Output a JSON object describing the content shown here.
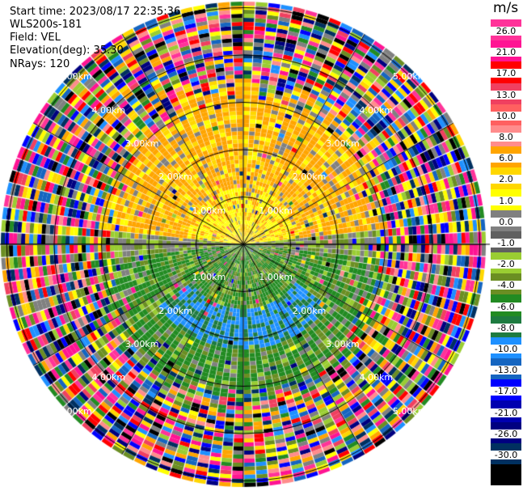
{
  "header": {
    "start_time": "Start time: 2023/08/17 22:35:36",
    "instrument": "WLS200s-181",
    "field": "Field: VEL",
    "elevation": "Elevation(deg): 35.30",
    "nrays": "NRays: 120"
  },
  "colorbar": {
    "unit": "m/s",
    "labels": [
      "26.0",
      "21.0",
      "17.0",
      "13.0",
      "10.0",
      "8.0",
      "6.0",
      "2.0",
      "1.0",
      "0.0",
      "-1.0",
      "-2.0",
      "-4.0",
      "-6.0",
      "-8.0",
      "-10.0",
      "-13.0",
      "-17.0",
      "-21.0",
      "-26.0",
      "-30.0"
    ],
    "colors": [
      "#ff3399",
      "#ff1493",
      "#ff0000",
      "#f04060",
      "#ff6060",
      "#ff8c8c",
      "#ffa500",
      "#ffd700",
      "#ffff00",
      "#808080",
      "#606060",
      "#9acd32",
      "#6b8e23",
      "#228b22",
      "#1e7b40",
      "#1e90ff",
      "#1565c0",
      "#0000ff",
      "#0000b0",
      "#000080",
      "#003060",
      "#000000"
    ]
  },
  "chart_data": {
    "type": "radar-ppi",
    "field": "VEL",
    "units": "m/s",
    "rays": 120,
    "range_rings_km": [
      1,
      2,
      3,
      4,
      5
    ],
    "ring_labels": [
      "1.00km",
      "2.00km",
      "3.00km",
      "4.00km",
      "5.00km"
    ],
    "dominant_pattern": {
      "north_sector": "positive 2 to 10 m/s (yellow/orange)",
      "south_sector": "negative -2 to -10 m/s (green/blue)",
      "beyond_3km": "noise (all colors)"
    }
  }
}
